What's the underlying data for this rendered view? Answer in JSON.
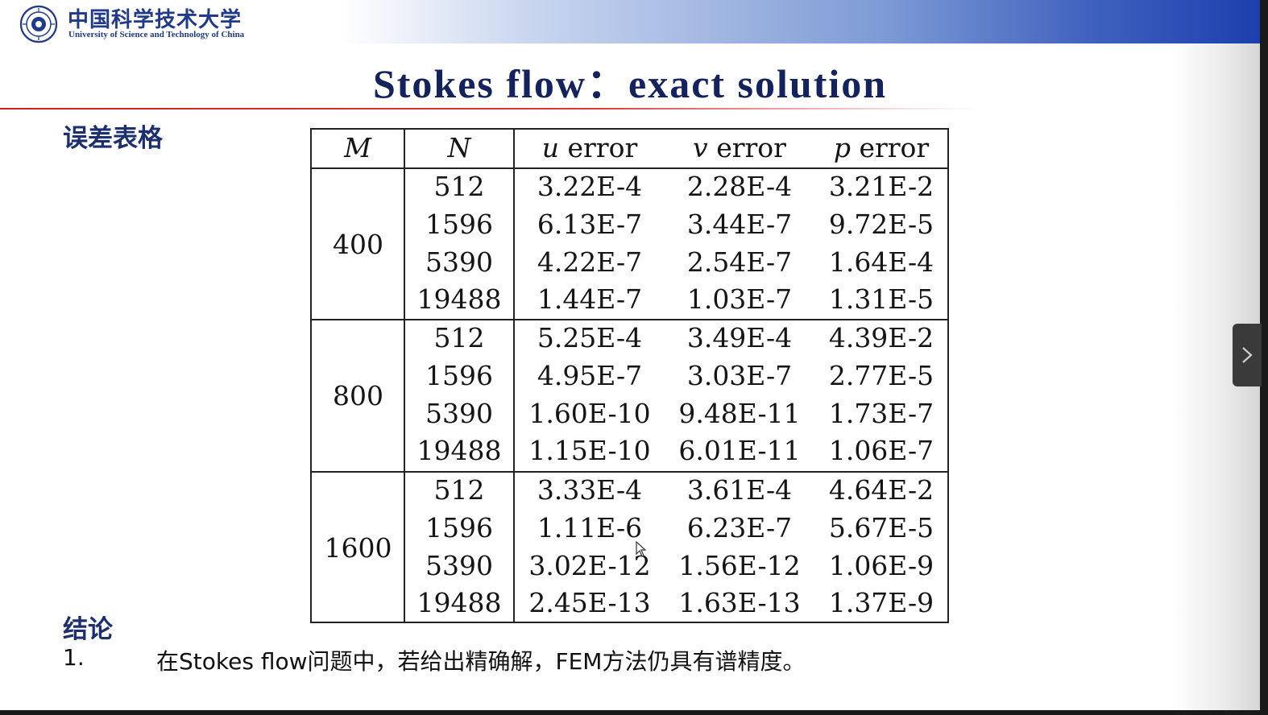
{
  "header": {
    "university_cn": "中国科学技术大学",
    "university_en": "University of Science and Technology of China",
    "logo_icon": "ustc-seal-icon"
  },
  "slide": {
    "title": "Stokes flow：exact solution",
    "table_section_label": "误差表格",
    "conclusion_label": "结论",
    "conclusion_items": [
      {
        "number": "1.",
        "text": "在Stokes flow问题中，若给出精确解，FEM方法仍具有谱精度。"
      }
    ]
  },
  "error_table": {
    "headers": {
      "m": "M",
      "n": "N",
      "u_var": "u",
      "v_var": "v",
      "p_var": "p",
      "error_word": "error"
    },
    "groups": [
      {
        "m": "400",
        "rows": [
          {
            "n": "512",
            "u": "3.22E-4",
            "v": "2.28E-4",
            "p": "3.21E-2"
          },
          {
            "n": "1596",
            "u": "6.13E-7",
            "v": "3.44E-7",
            "p": "9.72E-5"
          },
          {
            "n": "5390",
            "u": "4.22E-7",
            "v": "2.54E-7",
            "p": "1.64E-4"
          },
          {
            "n": "19488",
            "u": "1.44E-7",
            "v": "1.03E-7",
            "p": "1.31E-5"
          }
        ]
      },
      {
        "m": "800",
        "rows": [
          {
            "n": "512",
            "u": "5.25E-4",
            "v": "3.49E-4",
            "p": "4.39E-2"
          },
          {
            "n": "1596",
            "u": "4.95E-7",
            "v": "3.03E-7",
            "p": "2.77E-5"
          },
          {
            "n": "5390",
            "u": "1.60E-10",
            "v": "9.48E-11",
            "p": "1.73E-7"
          },
          {
            "n": "19488",
            "u": "1.15E-10",
            "v": "6.01E-11",
            "p": "1.06E-7"
          }
        ]
      },
      {
        "m": "1600",
        "rows": [
          {
            "n": "512",
            "u": "3.33E-4",
            "v": "3.61E-4",
            "p": "4.64E-2"
          },
          {
            "n": "1596",
            "u": "1.11E-6",
            "v": "6.23E-7",
            "p": "5.67E-5"
          },
          {
            "n": "5390",
            "u": "3.02E-12",
            "v": "1.56E-12",
            "p": "1.06E-9"
          },
          {
            "n": "19488",
            "u": "2.45E-13",
            "v": "1.63E-13",
            "p": "1.37E-9"
          }
        ]
      }
    ]
  },
  "viewer": {
    "next_icon": "chevron-right-icon",
    "cursor_icon": "mouse-pointer-icon"
  }
}
